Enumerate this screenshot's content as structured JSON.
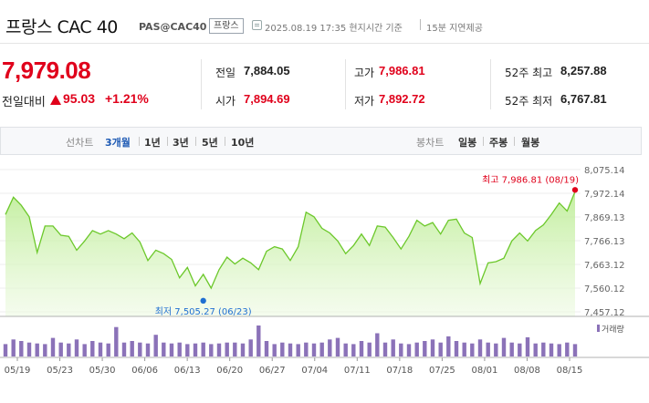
{
  "header": {
    "title": "프랑스 CAC 40",
    "code": "PAS@CAC40",
    "market_badge": "프랑스",
    "datetime": "2025.08.19 17:35 현지시간 기준",
    "delay_note": "15분 지연제공"
  },
  "quote": {
    "price": "7,979.08",
    "prev_label": "전일대비",
    "change": "95.03",
    "change_pct": "+1.21%",
    "stats": {
      "prev_close_label": "전일",
      "prev_close": "7,884.05",
      "open_label": "시가",
      "open": "7,894.69",
      "high_label": "고가",
      "high": "7,986.81",
      "low_label": "저가",
      "low": "7,892.72",
      "w52_high_label": "52주 최고",
      "w52_high": "8,257.88",
      "w52_low_label": "52주 최저",
      "w52_low": "6,767.81"
    }
  },
  "tabs": {
    "line_label": "선차트",
    "line_ranges": [
      "3개월",
      "1년",
      "3년",
      "5년",
      "10년"
    ],
    "line_active": "3개월",
    "candle_label": "봉차트",
    "candle_ranges": [
      "일봉",
      "주봉",
      "월봉"
    ]
  },
  "colors": {
    "up": "#e0001b",
    "line": "#6cc82b",
    "active_tab": "#1e5ab4",
    "volume": "#8b72b8",
    "min_dot": "#1f6fd1"
  },
  "chart_data": {
    "type": "area",
    "x_tick_labels": [
      "05/19",
      "05/23",
      "05/30",
      "06/06",
      "06/13",
      "06/20",
      "06/27",
      "07/04",
      "07/11",
      "07/18",
      "07/25",
      "08/01",
      "08/08",
      "08/15"
    ],
    "y_tick_labels": [
      "8,075.14",
      "7,972.14",
      "7,869.13",
      "7,766.13",
      "7,663.12",
      "7,560.12",
      "7,457.12"
    ],
    "ylim": [
      7457.12,
      8075.14
    ],
    "values": [
      7880,
      7955,
      7920,
      7870,
      7715,
      7830,
      7830,
      7790,
      7785,
      7725,
      7765,
      7810,
      7795,
      7810,
      7795,
      7775,
      7800,
      7760,
      7680,
      7725,
      7710,
      7685,
      7605,
      7650,
      7570,
      7620,
      7560,
      7640,
      7695,
      7665,
      7690,
      7670,
      7640,
      7720,
      7740,
      7730,
      7680,
      7740,
      7890,
      7870,
      7820,
      7800,
      7765,
      7710,
      7745,
      7795,
      7745,
      7830,
      7825,
      7780,
      7730,
      7785,
      7855,
      7830,
      7845,
      7795,
      7855,
      7860,
      7800,
      7780,
      7580,
      7670,
      7675,
      7690,
      7765,
      7800,
      7765,
      7810,
      7835,
      7880,
      7930,
      7895,
      7980
    ],
    "max_label": "최고 7,986.81 (08/19)",
    "min_label": "최저 7,505.27 (06/23)",
    "max_value": 7986.81,
    "min_value": 7505.27,
    "max_index": 72,
    "min_index": 25,
    "volume_label": "거래량",
    "volume": [
      0.4,
      0.55,
      0.5,
      0.45,
      0.42,
      0.4,
      0.6,
      0.45,
      0.42,
      0.55,
      0.4,
      0.5,
      0.45,
      0.42,
      0.95,
      0.45,
      0.5,
      0.45,
      0.42,
      0.7,
      0.45,
      0.42,
      0.45,
      0.4,
      0.42,
      0.45,
      0.4,
      0.42,
      0.45,
      0.45,
      0.42,
      0.55,
      1.0,
      0.5,
      0.4,
      0.45,
      0.42,
      0.4,
      0.45,
      0.42,
      0.45,
      0.55,
      0.6,
      0.42,
      0.4,
      0.5,
      0.45,
      0.75,
      0.45,
      0.55,
      0.42,
      0.4,
      0.45,
      0.5,
      0.55,
      0.45,
      0.65,
      0.5,
      0.45,
      0.42,
      0.55,
      0.45,
      0.42,
      0.6,
      0.45,
      0.42,
      0.62,
      0.42,
      0.45,
      0.42,
      0.4,
      0.45,
      0.4
    ]
  }
}
